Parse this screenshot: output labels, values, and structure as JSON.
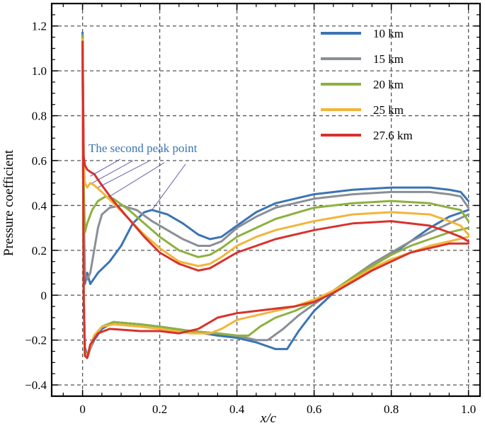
{
  "chart_data": {
    "type": "line",
    "title": "",
    "xlabel": "x/c",
    "ylabel": "Pressure coefficient",
    "xlim": [
      -0.08,
      1.03
    ],
    "ylim": [
      -0.45,
      1.3
    ],
    "x_ticks": [
      0,
      0.2,
      0.4,
      0.6,
      0.8,
      1.0
    ],
    "x_tick_labels": [
      "0",
      "0.2",
      "0.4",
      "0.6",
      "0.8",
      "1.0"
    ],
    "y_ticks": [
      -0.4,
      -0.2,
      0,
      0.2,
      0.4,
      0.6,
      0.8,
      1.0,
      1.2
    ],
    "y_tick_labels": [
      "−0.4",
      "−0.2",
      "0",
      "0.2",
      "0.4",
      "0.6",
      "0.8",
      "1.0",
      "1.2"
    ],
    "grid": true,
    "legend_position": "top-right",
    "annotation": {
      "text": "The second peak point",
      "color": "#3a75b0",
      "targets": [
        [
          0.18,
          0.38
        ],
        [
          0.07,
          0.44
        ],
        [
          0.04,
          0.48
        ],
        [
          0.025,
          0.5
        ],
        [
          0.02,
          0.53
        ]
      ]
    },
    "series": [
      {
        "name": "10 km",
        "color": "#3a74b4",
        "upper": [
          [
            0,
            1.17
          ],
          [
            0.003,
            0.3
          ],
          [
            0.006,
            0.05
          ],
          [
            0.012,
            0.1
          ],
          [
            0.02,
            0.05
          ],
          [
            0.04,
            0.1
          ],
          [
            0.07,
            0.15
          ],
          [
            0.1,
            0.22
          ],
          [
            0.13,
            0.32
          ],
          [
            0.16,
            0.37
          ],
          [
            0.18,
            0.38
          ],
          [
            0.22,
            0.36
          ],
          [
            0.26,
            0.32
          ],
          [
            0.3,
            0.27
          ],
          [
            0.33,
            0.25
          ],
          [
            0.36,
            0.26
          ],
          [
            0.4,
            0.31
          ],
          [
            0.45,
            0.37
          ],
          [
            0.5,
            0.41
          ],
          [
            0.6,
            0.45
          ],
          [
            0.7,
            0.47
          ],
          [
            0.8,
            0.48
          ],
          [
            0.9,
            0.48
          ],
          [
            0.95,
            0.47
          ],
          [
            0.98,
            0.46
          ],
          [
            1.0,
            0.42
          ]
        ],
        "lower": [
          [
            0,
            1.17
          ],
          [
            0.003,
            0.0
          ],
          [
            0.006,
            -0.23
          ],
          [
            0.012,
            -0.27
          ],
          [
            0.03,
            -0.2
          ],
          [
            0.05,
            -0.15
          ],
          [
            0.08,
            -0.12
          ],
          [
            0.15,
            -0.13
          ],
          [
            0.2,
            -0.14
          ],
          [
            0.28,
            -0.16
          ],
          [
            0.35,
            -0.18
          ],
          [
            0.4,
            -0.19
          ],
          [
            0.45,
            -0.21
          ],
          [
            0.5,
            -0.24
          ],
          [
            0.53,
            -0.24
          ],
          [
            0.56,
            -0.16
          ],
          [
            0.6,
            -0.07
          ],
          [
            0.65,
            0.01
          ],
          [
            0.7,
            0.07
          ],
          [
            0.75,
            0.13
          ],
          [
            0.8,
            0.18
          ],
          [
            0.85,
            0.24
          ],
          [
            0.9,
            0.3
          ],
          [
            0.95,
            0.35
          ],
          [
            1.0,
            0.38
          ]
        ]
      },
      {
        "name": "15 km",
        "color": "#8a8e96",
        "upper": [
          [
            0,
            1.16
          ],
          [
            0.003,
            0.4
          ],
          [
            0.006,
            0.1
          ],
          [
            0.012,
            0.07
          ],
          [
            0.02,
            0.1
          ],
          [
            0.03,
            0.2
          ],
          [
            0.04,
            0.3
          ],
          [
            0.05,
            0.36
          ],
          [
            0.07,
            0.39
          ],
          [
            0.1,
            0.4
          ],
          [
            0.14,
            0.38
          ],
          [
            0.18,
            0.33
          ],
          [
            0.22,
            0.29
          ],
          [
            0.26,
            0.25
          ],
          [
            0.3,
            0.22
          ],
          [
            0.33,
            0.22
          ],
          [
            0.36,
            0.24
          ],
          [
            0.4,
            0.3
          ],
          [
            0.45,
            0.35
          ],
          [
            0.5,
            0.39
          ],
          [
            0.6,
            0.43
          ],
          [
            0.7,
            0.45
          ],
          [
            0.8,
            0.46
          ],
          [
            0.9,
            0.46
          ],
          [
            0.95,
            0.45
          ],
          [
            0.98,
            0.44
          ],
          [
            1.0,
            0.39
          ]
        ],
        "lower": [
          [
            0,
            1.16
          ],
          [
            0.003,
            0.0
          ],
          [
            0.006,
            -0.24
          ],
          [
            0.012,
            -0.28
          ],
          [
            0.03,
            -0.19
          ],
          [
            0.05,
            -0.14
          ],
          [
            0.08,
            -0.12
          ],
          [
            0.15,
            -0.13
          ],
          [
            0.2,
            -0.14
          ],
          [
            0.28,
            -0.16
          ],
          [
            0.35,
            -0.17
          ],
          [
            0.4,
            -0.18
          ],
          [
            0.45,
            -0.2
          ],
          [
            0.48,
            -0.2
          ],
          [
            0.52,
            -0.15
          ],
          [
            0.56,
            -0.09
          ],
          [
            0.6,
            -0.04
          ],
          [
            0.65,
            0.02
          ],
          [
            0.7,
            0.08
          ],
          [
            0.75,
            0.14
          ],
          [
            0.8,
            0.19
          ],
          [
            0.85,
            0.24
          ],
          [
            0.9,
            0.28
          ],
          [
            0.95,
            0.32
          ],
          [
            1.0,
            0.36
          ]
        ]
      },
      {
        "name": "20 km",
        "color": "#8db13f",
        "upper": [
          [
            0,
            1.15
          ],
          [
            0.003,
            0.5
          ],
          [
            0.006,
            0.28
          ],
          [
            0.012,
            0.32
          ],
          [
            0.025,
            0.38
          ],
          [
            0.04,
            0.42
          ],
          [
            0.06,
            0.44
          ],
          [
            0.08,
            0.43
          ],
          [
            0.12,
            0.38
          ],
          [
            0.16,
            0.32
          ],
          [
            0.2,
            0.26
          ],
          [
            0.25,
            0.2
          ],
          [
            0.3,
            0.17
          ],
          [
            0.33,
            0.18
          ],
          [
            0.36,
            0.21
          ],
          [
            0.4,
            0.26
          ],
          [
            0.45,
            0.3
          ],
          [
            0.5,
            0.34
          ],
          [
            0.6,
            0.39
          ],
          [
            0.7,
            0.41
          ],
          [
            0.8,
            0.42
          ],
          [
            0.9,
            0.41
          ],
          [
            0.95,
            0.39
          ],
          [
            0.98,
            0.38
          ],
          [
            1.0,
            0.33
          ]
        ],
        "lower": [
          [
            0,
            1.15
          ],
          [
            0.003,
            0.0
          ],
          [
            0.006,
            -0.25
          ],
          [
            0.012,
            -0.27
          ],
          [
            0.03,
            -0.18
          ],
          [
            0.05,
            -0.14
          ],
          [
            0.08,
            -0.12
          ],
          [
            0.15,
            -0.13
          ],
          [
            0.2,
            -0.14
          ],
          [
            0.28,
            -0.16
          ],
          [
            0.35,
            -0.17
          ],
          [
            0.4,
            -0.18
          ],
          [
            0.43,
            -0.18
          ],
          [
            0.46,
            -0.14
          ],
          [
            0.5,
            -0.1
          ],
          [
            0.55,
            -0.07
          ],
          [
            0.6,
            -0.03
          ],
          [
            0.65,
            0.02
          ],
          [
            0.7,
            0.08
          ],
          [
            0.75,
            0.13
          ],
          [
            0.8,
            0.18
          ],
          [
            0.85,
            0.22
          ],
          [
            0.9,
            0.25
          ],
          [
            0.95,
            0.28
          ],
          [
            1.0,
            0.3
          ]
        ]
      },
      {
        "name": "25 km",
        "color": "#f2b53a",
        "upper": [
          [
            0,
            1.14
          ],
          [
            0.003,
            0.6
          ],
          [
            0.006,
            0.5
          ],
          [
            0.012,
            0.48
          ],
          [
            0.02,
            0.5
          ],
          [
            0.03,
            0.49
          ],
          [
            0.05,
            0.46
          ],
          [
            0.08,
            0.41
          ],
          [
            0.12,
            0.34
          ],
          [
            0.16,
            0.27
          ],
          [
            0.2,
            0.21
          ],
          [
            0.25,
            0.15
          ],
          [
            0.3,
            0.13
          ],
          [
            0.33,
            0.14
          ],
          [
            0.36,
            0.17
          ],
          [
            0.4,
            0.22
          ],
          [
            0.45,
            0.26
          ],
          [
            0.5,
            0.29
          ],
          [
            0.6,
            0.33
          ],
          [
            0.7,
            0.36
          ],
          [
            0.8,
            0.37
          ],
          [
            0.9,
            0.36
          ],
          [
            0.95,
            0.33
          ],
          [
            0.98,
            0.31
          ],
          [
            1.0,
            0.27
          ]
        ],
        "lower": [
          [
            0,
            1.14
          ],
          [
            0.003,
            0.0
          ],
          [
            0.006,
            -0.26
          ],
          [
            0.012,
            -0.27
          ],
          [
            0.03,
            -0.18
          ],
          [
            0.05,
            -0.14
          ],
          [
            0.08,
            -0.13
          ],
          [
            0.15,
            -0.14
          ],
          [
            0.2,
            -0.15
          ],
          [
            0.28,
            -0.17
          ],
          [
            0.33,
            -0.17
          ],
          [
            0.36,
            -0.15
          ],
          [
            0.4,
            -0.11
          ],
          [
            0.45,
            -0.09
          ],
          [
            0.5,
            -0.07
          ],
          [
            0.55,
            -0.05
          ],
          [
            0.6,
            -0.02
          ],
          [
            0.65,
            0.02
          ],
          [
            0.7,
            0.07
          ],
          [
            0.75,
            0.12
          ],
          [
            0.8,
            0.16
          ],
          [
            0.85,
            0.19
          ],
          [
            0.9,
            0.22
          ],
          [
            0.95,
            0.24
          ],
          [
            1.0,
            0.26
          ]
        ]
      },
      {
        "name": "27.6 km",
        "color": "#d7322c",
        "upper": [
          [
            0,
            1.13
          ],
          [
            0.003,
            0.62
          ],
          [
            0.006,
            0.58
          ],
          [
            0.012,
            0.56
          ],
          [
            0.02,
            0.55
          ],
          [
            0.03,
            0.54
          ],
          [
            0.05,
            0.49
          ],
          [
            0.08,
            0.42
          ],
          [
            0.12,
            0.34
          ],
          [
            0.16,
            0.26
          ],
          [
            0.2,
            0.19
          ],
          [
            0.25,
            0.14
          ],
          [
            0.3,
            0.11
          ],
          [
            0.33,
            0.12
          ],
          [
            0.36,
            0.15
          ],
          [
            0.4,
            0.19
          ],
          [
            0.45,
            0.22
          ],
          [
            0.5,
            0.25
          ],
          [
            0.6,
            0.29
          ],
          [
            0.7,
            0.32
          ],
          [
            0.8,
            0.33
          ],
          [
            0.9,
            0.31
          ],
          [
            0.95,
            0.28
          ],
          [
            0.98,
            0.26
          ],
          [
            1.0,
            0.24
          ]
        ],
        "lower": [
          [
            0,
            1.13
          ],
          [
            0.003,
            0.0
          ],
          [
            0.006,
            -0.27
          ],
          [
            0.012,
            -0.28
          ],
          [
            0.02,
            -0.22
          ],
          [
            0.04,
            -0.17
          ],
          [
            0.07,
            -0.15
          ],
          [
            0.15,
            -0.16
          ],
          [
            0.2,
            -0.16
          ],
          [
            0.25,
            -0.17
          ],
          [
            0.3,
            -0.15
          ],
          [
            0.35,
            -0.1
          ],
          [
            0.4,
            -0.08
          ],
          [
            0.45,
            -0.07
          ],
          [
            0.5,
            -0.06
          ],
          [
            0.55,
            -0.05
          ],
          [
            0.6,
            -0.03
          ],
          [
            0.65,
            0.01
          ],
          [
            0.7,
            0.06
          ],
          [
            0.75,
            0.11
          ],
          [
            0.8,
            0.15
          ],
          [
            0.85,
            0.19
          ],
          [
            0.9,
            0.21
          ],
          [
            0.95,
            0.23
          ],
          [
            1.0,
            0.23
          ]
        ]
      }
    ]
  }
}
